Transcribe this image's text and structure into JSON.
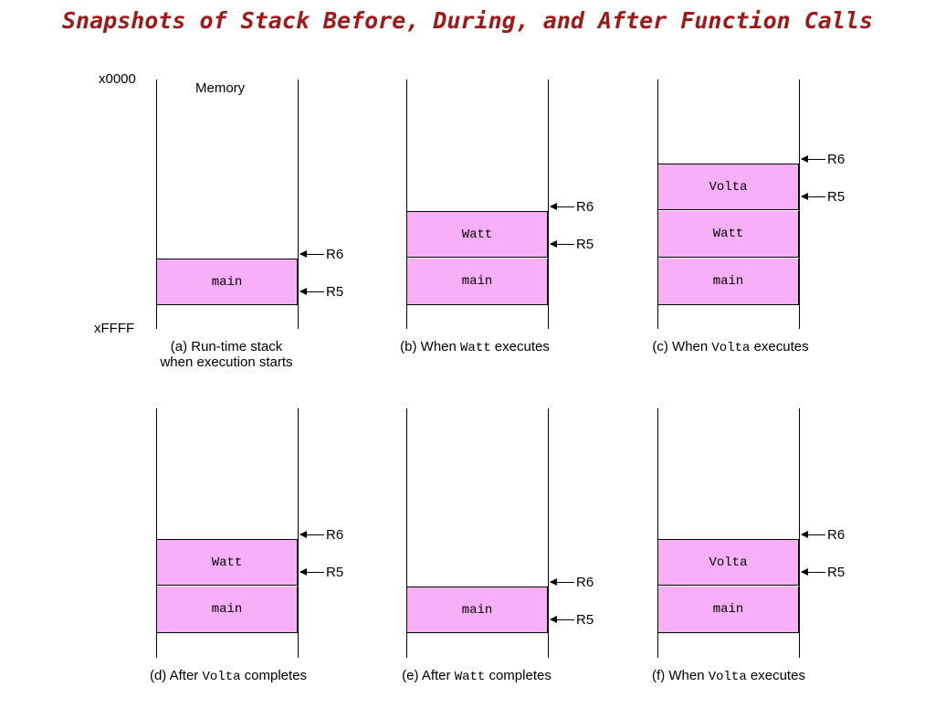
{
  "title": "Snapshots of Stack Before, During, and After Function Calls",
  "address_top": "x0000",
  "address_bottom": "xFFFF",
  "memory_label": "Memory",
  "r6_label": "R6",
  "r5_label": "R5",
  "panels": [
    {
      "caption_pre": "(a) Run-time stack",
      "caption_code": "",
      "caption_post": "",
      "caption_line2": "when execution starts",
      "frames": [
        "main"
      ]
    },
    {
      "caption_pre": "(b) When ",
      "caption_code": "Watt",
      "caption_post": " executes",
      "caption_line2": "",
      "frames": [
        "Watt",
        "main"
      ]
    },
    {
      "caption_pre": "(c) When ",
      "caption_code": "Volta",
      "caption_post": " executes",
      "caption_line2": "",
      "frames": [
        "Volta",
        "Watt",
        "main"
      ]
    },
    {
      "caption_pre": "(d) After ",
      "caption_code": "Volta",
      "caption_post": " completes",
      "caption_line2": "",
      "frames": [
        "Watt",
        "main"
      ]
    },
    {
      "caption_pre": "(e) After ",
      "caption_code": "Watt",
      "caption_post": " completes",
      "caption_line2": "",
      "frames": [
        "main"
      ]
    },
    {
      "caption_pre": "(f) When ",
      "caption_code": "Volta",
      "caption_post": " executes",
      "caption_line2": "",
      "frames": [
        "Volta",
        "main"
      ]
    }
  ]
}
